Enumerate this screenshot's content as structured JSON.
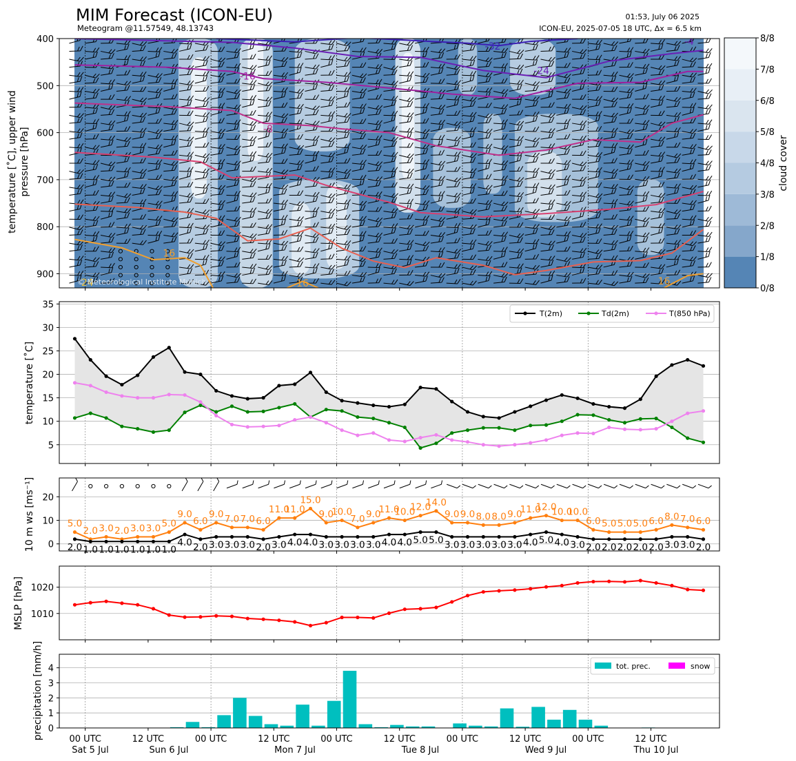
{
  "header": {
    "title": "MIM Forecast (ICON-EU)",
    "subtitle": "Meteogram @11.57549, 48.13743",
    "timestamp": "01:53, July 06 2025",
    "run_info": "ICON-EU, 2025-07-05 18 UTC, Δx = 6.5 km",
    "copyright": "© Meteorological Institute Munich"
  },
  "colors": {
    "cloud_dark": "#5585b5",
    "cloud_light": "#f4f8fb",
    "t2m": "#000000",
    "td2m": "#008000",
    "t850": "#ee82ee",
    "ws_orange": "#ff7f0e",
    "mslp": "#ff0000",
    "precip": "#00bfbf",
    "snow": "#ff00ff"
  },
  "chart_data": [
    {
      "type": "heatmap",
      "name": "upper-air",
      "ylabel": "temperature [˚C], upper wind\npressure [hPa]",
      "ylim": [
        930,
        400
      ],
      "yticks": [
        400,
        500,
        600,
        700,
        800,
        900
      ],
      "colorbar": {
        "label": "cloud cover",
        "ticks": [
          "0/8",
          "1/8",
          "2/8",
          "3/8",
          "4/8",
          "5/8",
          "6/8",
          "7/8",
          "8/8"
        ]
      },
      "contour_labels": [
        {
          "text": "-32",
          "t": 26.6,
          "p": 416,
          "color": "#3b1fb5"
        },
        {
          "text": "-24",
          "t": 29.7,
          "p": 468,
          "color": "#6a1fb5"
        },
        {
          "text": "-4",
          "t": 39.1,
          "p": 406,
          "color": "#6a1fb5"
        },
        {
          "text": "-16",
          "t": 11.0,
          "p": 480,
          "color": "#a020a0"
        },
        {
          "text": "-8",
          "t": 12.3,
          "p": 592,
          "color": "#c0308a"
        },
        {
          "text": "16",
          "t": 6.0,
          "p": 856,
          "color": "#f0a030"
        },
        {
          "text": "16",
          "t": 14.5,
          "p": 920,
          "color": "#f0a030"
        },
        {
          "text": "16",
          "t": 37.5,
          "p": 915,
          "color": "#f0a030"
        },
        {
          "text": "24",
          "t": 0.8,
          "p": 918,
          "color": "#e8c040"
        }
      ],
      "isotherms": [
        {
          "level": -32,
          "color": "#3b1fb5",
          "points": [
            [
              9,
              400
            ],
            [
              14,
              407
            ],
            [
              18,
              398
            ],
            [
              22,
              405
            ],
            [
              25,
              410
            ],
            [
              27,
              415
            ],
            [
              29,
              406
            ],
            [
              32,
              400
            ]
          ]
        },
        {
          "level": -24,
          "color": "#6a1fb5",
          "points": [
            [
              0,
              400
            ],
            [
              6,
              405
            ],
            [
              10,
              408
            ],
            [
              14,
              420
            ],
            [
              18,
              438
            ],
            [
              22,
              440
            ],
            [
              26,
              468
            ],
            [
              30,
              483
            ],
            [
              34,
              448
            ],
            [
              38,
              432
            ],
            [
              40,
              425
            ]
          ]
        },
        {
          "level": -16,
          "color": "#a020a0",
          "points": [
            [
              0,
              456
            ],
            [
              6,
              461
            ],
            [
              10,
              470
            ],
            [
              12,
              485
            ],
            [
              16,
              493
            ],
            [
              20,
              505
            ],
            [
              24,
              518
            ],
            [
              28,
              527
            ],
            [
              32,
              495
            ],
            [
              36,
              493
            ],
            [
              39,
              470
            ],
            [
              40,
              470
            ]
          ]
        },
        {
          "level": -8,
          "color": "#c0308a",
          "points": [
            [
              0,
              537
            ],
            [
              6,
              545
            ],
            [
              10,
              553
            ],
            [
              12,
              580
            ],
            [
              15,
              585
            ],
            [
              17,
              592
            ],
            [
              20,
              600
            ],
            [
              23,
              628
            ],
            [
              27,
              648
            ],
            [
              30,
              637
            ],
            [
              33,
              615
            ],
            [
              36,
              620
            ],
            [
              38,
              580
            ],
            [
              40,
              562
            ]
          ]
        },
        {
          "level": 0,
          "color": "#d84070",
          "points": [
            [
              0,
              642
            ],
            [
              5,
              652
            ],
            [
              8,
              662
            ],
            [
              10,
              696
            ],
            [
              14,
              690
            ],
            [
              16,
              712
            ],
            [
              20,
              748
            ],
            [
              22,
              770
            ],
            [
              26,
              779
            ],
            [
              30,
              772
            ],
            [
              34,
              763
            ],
            [
              37,
              753
            ],
            [
              40,
              725
            ]
          ]
        },
        {
          "level": 8,
          "color": "#e86050",
          "points": [
            [
              0,
              752
            ],
            [
              4,
              759
            ],
            [
              7,
              769
            ],
            [
              9,
              782
            ],
            [
              11,
              830
            ],
            [
              13,
              826
            ],
            [
              15,
              803
            ],
            [
              17,
              846
            ],
            [
              19,
              873
            ],
            [
              21,
              887
            ],
            [
              23,
              866
            ],
            [
              26,
              882
            ],
            [
              28,
              902
            ],
            [
              30,
              893
            ],
            [
              33,
              875
            ],
            [
              36,
              872
            ],
            [
              38,
              856
            ],
            [
              40,
              806
            ]
          ]
        },
        {
          "level": 16,
          "color": "#f0a030",
          "points": [
            [
              0,
              827
            ],
            [
              3,
              845
            ],
            [
              5,
              870
            ],
            [
              7,
              866
            ],
            [
              8,
              882
            ],
            [
              8.8,
              930
            ]
          ]
        },
        {
          "level": 16,
          "color": "#f0a030",
          "points": [
            [
              13.5,
              930
            ],
            [
              14.5,
              916
            ],
            [
              15.5,
              930
            ]
          ]
        },
        {
          "level": 16,
          "color": "#f0a030",
          "points": [
            [
              37.5,
              930
            ],
            [
              39,
              904
            ],
            [
              40,
              900
            ]
          ]
        }
      ],
      "cloud_bands": [
        {
          "t0": 6.6,
          "t1": 9.1,
          "p0": 400,
          "p1": 930,
          "level": 5
        },
        {
          "t0": 7.4,
          "t1": 8.4,
          "p0": 440,
          "p1": 740,
          "level": 8
        },
        {
          "t0": 10.5,
          "t1": 12.6,
          "p0": 400,
          "p1": 930,
          "level": 6
        },
        {
          "t0": 11.0,
          "t1": 12.0,
          "p0": 400,
          "p1": 660,
          "level": 8
        },
        {
          "t0": 13.0,
          "t1": 18.1,
          "p0": 700,
          "p1": 910,
          "level": 5
        },
        {
          "t0": 13.8,
          "t1": 15.0,
          "p0": 750,
          "p1": 900,
          "level": 7
        },
        {
          "t0": 16.0,
          "t1": 17.3,
          "p0": 710,
          "p1": 890,
          "level": 7
        },
        {
          "t0": 14.0,
          "t1": 17.5,
          "p0": 400,
          "p1": 640,
          "level": 5
        },
        {
          "t0": 20.4,
          "t1": 22.0,
          "p0": 400,
          "p1": 770,
          "level": 7
        },
        {
          "t0": 20.8,
          "t1": 21.6,
          "p0": 430,
          "p1": 700,
          "level": 8
        },
        {
          "t0": 24.4,
          "t1": 25.6,
          "p0": 400,
          "p1": 520,
          "level": 4
        },
        {
          "t0": 22.8,
          "t1": 25.2,
          "p0": 590,
          "p1": 760,
          "level": 4
        },
        {
          "t0": 26.0,
          "t1": 27.2,
          "p0": 560,
          "p1": 730,
          "level": 4
        },
        {
          "t0": 27.7,
          "t1": 30.6,
          "p0": 400,
          "p1": 520,
          "level": 5
        },
        {
          "t0": 28.0,
          "t1": 33.3,
          "p0": 560,
          "p1": 790,
          "level": 4
        },
        {
          "t0": 28.8,
          "t1": 31.0,
          "p0": 640,
          "p1": 780,
          "level": 6
        },
        {
          "t0": 35.8,
          "t1": 37.5,
          "p0": 700,
          "p1": 860,
          "level": 4
        }
      ]
    },
    {
      "type": "line",
      "name": "temperature",
      "ylabel": "temperature [˚C]",
      "ylim": [
        1,
        35.5
      ],
      "yticks": [
        5,
        10,
        15,
        20,
        25,
        30,
        35
      ],
      "legend_position": "top-right",
      "series": [
        {
          "name": "T(2m)",
          "values": [
            27.6,
            23.1,
            19.6,
            17.8,
            19.8,
            23.7,
            25.7,
            20.5,
            20.0,
            16.5,
            15.4,
            14.8,
            15.0,
            17.6,
            17.9,
            20.4,
            16.2,
            14.4,
            13.9,
            13.4,
            13.1,
            13.6,
            17.2,
            16.9,
            14.2,
            12.0,
            11.0,
            10.7,
            12.0,
            13.2,
            14.5,
            15.6,
            14.9,
            13.7,
            13.1,
            12.8,
            14.7,
            19.6,
            22.0,
            23.1,
            21.8
          ]
        },
        {
          "name": "Td(2m)",
          "values": [
            10.7,
            11.7,
            10.7,
            8.9,
            8.4,
            7.7,
            8.1,
            11.9,
            13.4,
            12.0,
            13.2,
            12.0,
            12.1,
            12.9,
            13.7,
            10.9,
            12.5,
            12.2,
            10.9,
            10.6,
            9.7,
            8.7,
            4.3,
            5.3,
            7.5,
            8.1,
            8.6,
            8.6,
            8.1,
            9.1,
            9.2,
            10.0,
            11.4,
            11.3,
            10.3,
            9.7,
            10.5,
            10.6,
            8.7,
            6.4,
            5.5
          ]
        },
        {
          "name": "T(850 hPa)",
          "values": [
            18.2,
            17.6,
            16.2,
            15.4,
            15.0,
            15.0,
            15.7,
            15.6,
            14.1,
            11.2,
            9.3,
            8.8,
            8.9,
            9.1,
            10.3,
            10.9,
            9.7,
            8.1,
            7.0,
            7.5,
            6.0,
            5.7,
            6.5,
            7.1,
            6.0,
            5.6,
            5.0,
            4.7,
            5.0,
            5.4,
            6.0,
            7.0,
            7.5,
            7.4,
            8.7,
            8.3,
            8.2,
            8.4,
            10.0,
            11.7,
            12.2
          ]
        }
      ]
    },
    {
      "type": "line",
      "name": "wind",
      "ylabel": "10 m ws [ms⁻¹]",
      "ylim": [
        -3,
        28
      ],
      "yticks": [
        0,
        10,
        20
      ],
      "series": [
        {
          "name": "gust",
          "values": [
            5.0,
            2.0,
            3.0,
            2.0,
            3.0,
            3.0,
            5.0,
            9.0,
            6.0,
            9.0,
            7.0,
            7.0,
            6.0,
            11.0,
            11.0,
            15.0,
            9.0,
            10.0,
            7.0,
            9.0,
            11.0,
            10.0,
            12.0,
            14.0,
            9.0,
            9.0,
            8.0,
            8.0,
            9.0,
            11.0,
            12.0,
            10.0,
            10.0,
            6.0,
            5.0,
            5.0,
            5.0,
            6.0,
            8.0,
            7.0,
            6.0
          ]
        },
        {
          "name": "mean",
          "values": [
            2.0,
            1.0,
            1.0,
            1.0,
            1.0,
            1.0,
            1.0,
            4.0,
            2.0,
            3.0,
            3.0,
            3.0,
            2.0,
            3.0,
            4.0,
            4.0,
            3.0,
            3.0,
            3.0,
            3.0,
            4.0,
            4.0,
            5.0,
            5.0,
            3.0,
            3.0,
            3.0,
            3.0,
            3.0,
            4.0,
            5.0,
            4.0,
            3.0,
            2.0,
            2.0,
            2.0,
            2.0,
            2.0,
            3.0,
            3.0,
            2.0
          ]
        }
      ]
    },
    {
      "type": "line",
      "name": "pressure",
      "ylabel": "MSLP [hPa]",
      "ylim": [
        1000,
        1028
      ],
      "yticks": [
        1010,
        1020
      ],
      "series": [
        {
          "name": "MSLP",
          "values": [
            1013.3,
            1014.1,
            1014.6,
            1013.9,
            1013.3,
            1011.8,
            1009.4,
            1008.6,
            1008.7,
            1009.1,
            1008.9,
            1008.1,
            1007.8,
            1007.4,
            1006.8,
            1005.4,
            1006.5,
            1008.5,
            1008.5,
            1008.3,
            1010.1,
            1011.6,
            1011.8,
            1012.3,
            1014.4,
            1016.8,
            1018.2,
            1018.6,
            1018.9,
            1019.4,
            1020.1,
            1020.6,
            1021.6,
            1022.1,
            1022.2,
            1022.0,
            1022.5,
            1021.6,
            1020.6,
            1019.1,
            1018.8
          ]
        }
      ]
    },
    {
      "type": "bar",
      "name": "precipitation",
      "ylabel": "precipitation [mm/h]",
      "ylim": [
        0,
        4.9
      ],
      "yticks": [
        0,
        1,
        2,
        3,
        4
      ],
      "legend_position": "top-right",
      "series": [
        {
          "name": "tot. prec.",
          "values": [
            0,
            0,
            0,
            0,
            0,
            0,
            0.05,
            0.4,
            0.05,
            0.85,
            2.0,
            0.8,
            0.25,
            0.15,
            1.55,
            0.15,
            1.8,
            3.8,
            0.25,
            0.05,
            0.2,
            0.1,
            0.1,
            0,
            0.3,
            0.15,
            0.1,
            1.3,
            0.08,
            1.4,
            0.55,
            1.2,
            0.55,
            0.15,
            0.02,
            0,
            0.03,
            0,
            0,
            0,
            0
          ]
        },
        {
          "name": "snow",
          "values": []
        }
      ]
    }
  ],
  "x_axis": {
    "tick_labels": [
      "00 UTC",
      "12 UTC",
      "00 UTC",
      "12 UTC",
      "00 UTC",
      "12 UTC",
      "00 UTC",
      "12 UTC",
      "00 UTC",
      "12 UTC"
    ],
    "day_labels": [
      "Sat 5 Jul",
      "Sun 6 Jul",
      "Mon 7 Jul",
      "Tue 8 Jul",
      "Wed 9 Jul",
      "Thu 10 Jul"
    ]
  }
}
